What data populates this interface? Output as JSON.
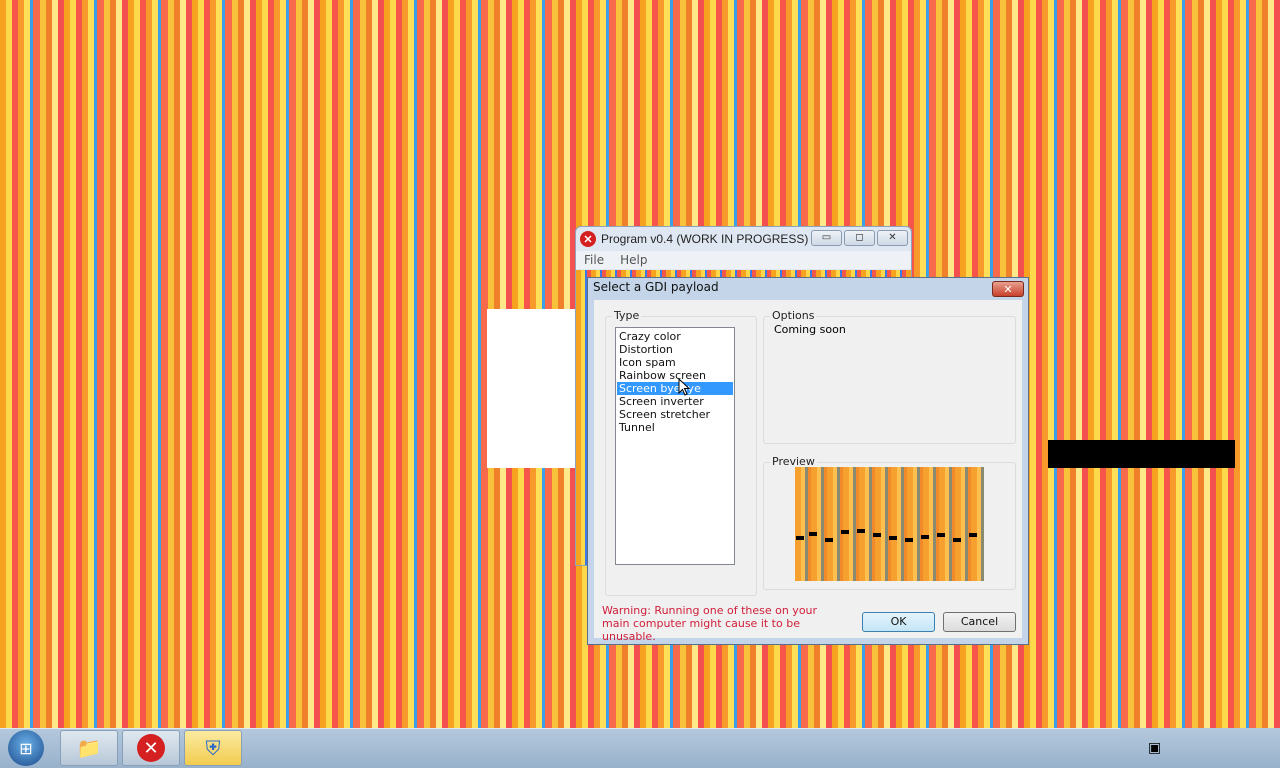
{
  "main_window": {
    "title": "Program v0.4 (WORK IN PROGRESS)",
    "menu": [
      "File",
      "Help"
    ]
  },
  "dialog": {
    "title": "Select a GDI payload",
    "type_label": "Type",
    "types": [
      "Crazy color",
      "Distortion",
      "Icon spam",
      "Rainbow screen",
      "Screen byebye",
      "Screen inverter",
      "Screen stretcher",
      "Tunnel"
    ],
    "selected_type": "Screen byebye",
    "options_label": "Options",
    "options_text": "Coming soon",
    "preview_label": "Preview",
    "warning": "Warning: Running one of these on your main computer might cause it to be unusable.",
    "ok": "OK",
    "cancel": "Cancel",
    "warning_color": "#d0203a",
    "selection_color": "#3399ff"
  },
  "taskbar": {
    "items": [
      "start-orb",
      "file-explorer-icon",
      "error-app-icon",
      "uac-shield-icon"
    ]
  }
}
